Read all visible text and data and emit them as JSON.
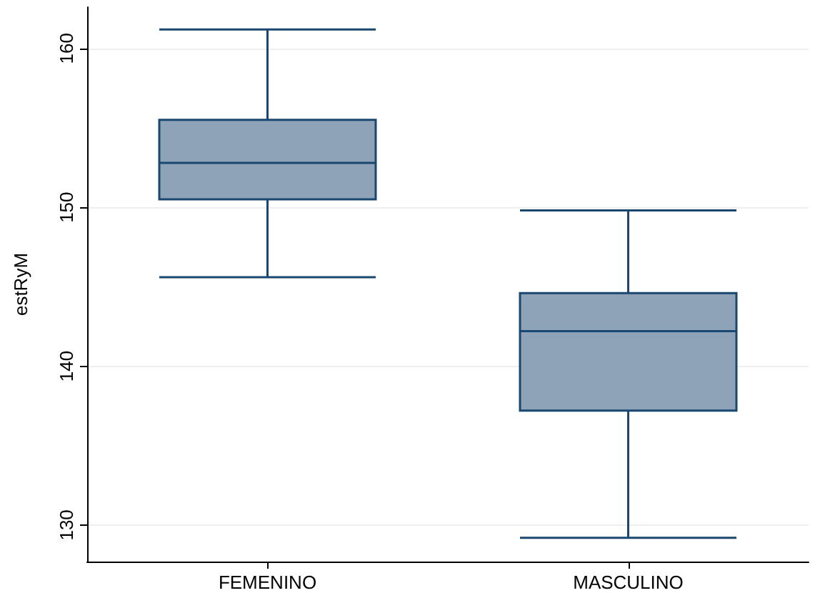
{
  "chart_data": {
    "type": "box",
    "ylabel": "estRyM",
    "categories": [
      "FEMENINO",
      "MASCULINO"
    ],
    "boxes": [
      {
        "low": 145.6,
        "q1": 150.5,
        "median": 152.8,
        "q3": 155.5,
        "high": 161.2
      },
      {
        "low": 129.2,
        "q1": 137.2,
        "median": 142.2,
        "q3": 144.6,
        "high": 149.8
      }
    ],
    "color": "#8fa3b8",
    "ylim": [
      127.7,
      162.6
    ],
    "yticks": [
      130,
      140,
      150,
      160
    ],
    "grid": "y"
  }
}
